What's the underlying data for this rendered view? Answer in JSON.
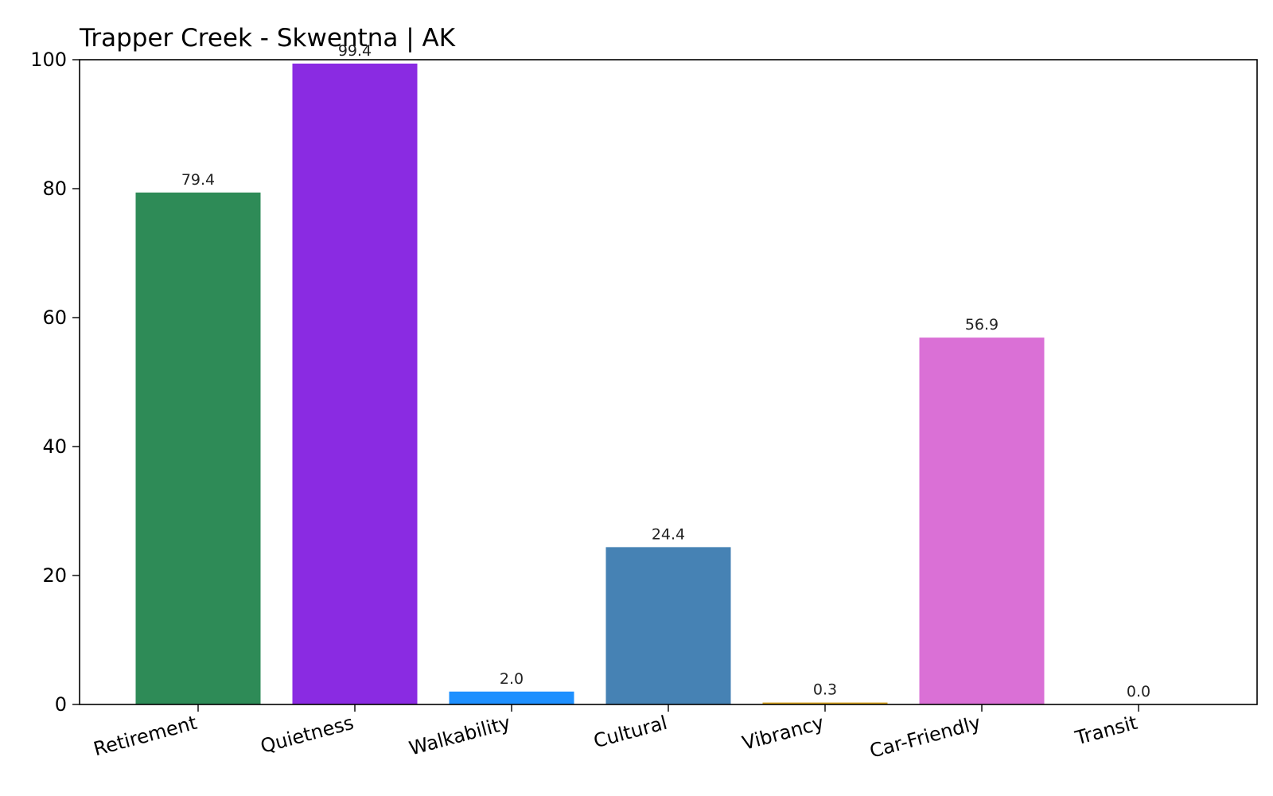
{
  "chart_data": {
    "type": "bar",
    "title": "Trapper Creek - Skwentna | AK",
    "xlabel": "",
    "ylabel": "",
    "categories": [
      "Retirement",
      "Quietness",
      "Walkability",
      "Cultural",
      "Vibrancy",
      "Car-Friendly",
      "Transit"
    ],
    "values": [
      79.4,
      99.4,
      2.0,
      24.4,
      0.3,
      56.9,
      0.0
    ],
    "value_labels": [
      "79.4",
      "99.4",
      "2.0",
      "24.4",
      "0.3",
      "56.9",
      "0.0"
    ],
    "colors": [
      "#2e8b57",
      "#8a2be2",
      "#1e90ff",
      "#4682b4",
      "#daa520",
      "#da70d6",
      "#708090"
    ],
    "ylim": [
      0,
      100
    ],
    "yticks": [
      0,
      20,
      40,
      60,
      80,
      100
    ],
    "ytick_labels": [
      "0",
      "20",
      "40",
      "60",
      "80",
      "100"
    ],
    "grid": false,
    "legend": "none"
  }
}
